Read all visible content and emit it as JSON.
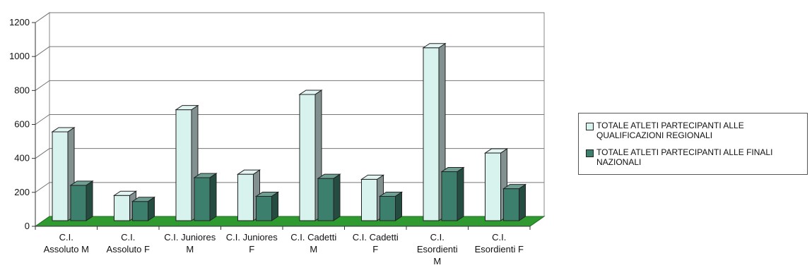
{
  "chart_data": {
    "type": "bar",
    "categories": [
      [
        "C.I.",
        "Assoluto M"
      ],
      [
        "C.I.",
        "Assoluto F"
      ],
      [
        "C.I. Juniores",
        "M"
      ],
      [
        "C.I. Juniores",
        "F"
      ],
      [
        "C.I. Cadetti",
        "M"
      ],
      [
        "C.I. Cadetti",
        "F"
      ],
      [
        "C.I.",
        "Esordienti",
        "M"
      ],
      [
        "C.I.",
        "Esordienti F"
      ]
    ],
    "series": [
      {
        "name": "TOTALE ATLETI PARTECIPANTI ALLE QUALIFICAZIONI REGIONALI",
        "color": "#d8f2ee",
        "values": [
          540,
          165,
          670,
          290,
          760,
          260,
          1035,
          415
        ]
      },
      {
        "name": "TOTALE ATLETI PARTECIPANTI ALLE FINALI NAZIONALI",
        "color": "#3d7f6d",
        "values": [
          225,
          130,
          270,
          160,
          265,
          160,
          305,
          205
        ]
      }
    ],
    "yticks": [
      0,
      200,
      400,
      600,
      800,
      1000,
      1200
    ],
    "ylim": [
      0,
      1200
    ],
    "grid": true,
    "floor_color": "#2f9a2f",
    "legend_position": "right"
  },
  "legend": {
    "items": [
      {
        "text": "TOTALE ATLETI PARTECIPANTI ALLE QUALIFICAZIONI REGIONALI",
        "color": "#d8f2ee"
      },
      {
        "text": "TOTALE ATLETI PARTECIPANTI ALLE FINALI NAZIONALI",
        "color": "#3d7f6d"
      }
    ]
  }
}
